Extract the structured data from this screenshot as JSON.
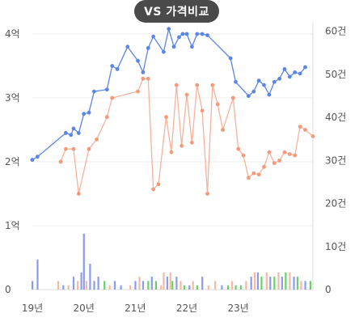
{
  "header": {
    "toggle_label": "VS 가격비교"
  },
  "chart_data": {
    "type": "line",
    "x_ticks": [
      "19년",
      "20년",
      "21년",
      "22년",
      "23년"
    ],
    "y_left": {
      "ticks": [
        "0",
        "1억",
        "2억",
        "3억",
        "4억"
      ],
      "range": [
        0,
        4.3
      ]
    },
    "y_right": {
      "ticks": [
        "0",
        "10건",
        "20건",
        "30건",
        "40건",
        "50건",
        "60건"
      ],
      "range": [
        0,
        62
      ]
    },
    "colors": {
      "blue": "#5b86e5",
      "orange": "#f39a7b",
      "bar_blue": "#8c9bf0",
      "bar_orange": "#f8b9a4",
      "bar_green": "#6bd06b"
    },
    "series": [
      {
        "color_key": "blue",
        "values": [
          [
            2019.0,
            2.03
          ],
          [
            2019.1,
            2.08
          ],
          [
            2019.65,
            2.45
          ],
          [
            2019.75,
            2.42
          ],
          [
            2019.8,
            2.52
          ],
          [
            2019.9,
            2.45
          ],
          [
            2020.0,
            2.75
          ],
          [
            2020.1,
            2.77
          ],
          [
            2020.2,
            3.1
          ],
          [
            2020.45,
            3.13
          ],
          [
            2020.55,
            3.5
          ],
          [
            2020.65,
            3.45
          ],
          [
            2020.85,
            3.8
          ],
          [
            2021.05,
            3.58
          ],
          [
            2021.15,
            3.4
          ],
          [
            2021.25,
            3.78
          ],
          [
            2021.35,
            3.96
          ],
          [
            2021.55,
            3.72
          ],
          [
            2021.65,
            4.08
          ],
          [
            2021.75,
            3.8
          ],
          [
            2021.85,
            3.95
          ],
          [
            2021.92,
            4.0
          ],
          [
            2022.0,
            4.0
          ],
          [
            2022.1,
            3.8
          ],
          [
            2022.2,
            4.0
          ],
          [
            2022.3,
            4.0
          ],
          [
            2022.4,
            3.98
          ],
          [
            2022.85,
            3.62
          ],
          [
            2022.95,
            3.25
          ],
          [
            2023.2,
            3.03
          ],
          [
            2023.3,
            3.1
          ],
          [
            2023.4,
            3.27
          ],
          [
            2023.5,
            3.2
          ],
          [
            2023.6,
            3.05
          ],
          [
            2023.7,
            3.25
          ],
          [
            2023.8,
            3.3
          ],
          [
            2023.9,
            3.45
          ],
          [
            2024.0,
            3.33
          ],
          [
            2024.1,
            3.4
          ],
          [
            2024.2,
            3.38
          ],
          [
            2024.3,
            3.48
          ]
        ]
      },
      {
        "color_key": "orange",
        "values": [
          [
            2019.55,
            2.0
          ],
          [
            2019.65,
            2.2
          ],
          [
            2019.8,
            2.2
          ],
          [
            2019.9,
            1.5
          ],
          [
            2020.1,
            2.2
          ],
          [
            2020.25,
            2.35
          ],
          [
            2020.45,
            2.7
          ],
          [
            2020.55,
            3.0
          ],
          [
            2021.05,
            3.1
          ],
          [
            2021.15,
            3.3
          ],
          [
            2021.25,
            3.3
          ],
          [
            2021.35,
            1.57
          ],
          [
            2021.45,
            1.65
          ],
          [
            2021.6,
            2.7
          ],
          [
            2021.7,
            2.15
          ],
          [
            2021.8,
            3.2
          ],
          [
            2021.9,
            2.25
          ],
          [
            2022.0,
            3.05
          ],
          [
            2022.1,
            2.3
          ],
          [
            2022.2,
            3.2
          ],
          [
            2022.3,
            2.8
          ],
          [
            2022.4,
            1.5
          ],
          [
            2022.5,
            3.2
          ],
          [
            2022.6,
            2.9
          ],
          [
            2022.7,
            2.5
          ],
          [
            2022.9,
            3.0
          ],
          [
            2023.0,
            2.2
          ],
          [
            2023.1,
            2.1
          ],
          [
            2023.2,
            1.75
          ],
          [
            2023.3,
            1.82
          ],
          [
            2023.4,
            1.8
          ],
          [
            2023.5,
            1.92
          ],
          [
            2023.6,
            2.15
          ],
          [
            2023.7,
            1.98
          ],
          [
            2023.8,
            2.02
          ],
          [
            2023.9,
            2.15
          ],
          [
            2024.0,
            2.12
          ],
          [
            2024.1,
            2.1
          ],
          [
            2024.2,
            2.55
          ],
          [
            2024.3,
            2.5
          ],
          [
            2024.45,
            2.4
          ]
        ]
      }
    ],
    "volume_bars": [
      [
        2019.0,
        2,
        "blue"
      ],
      [
        2019.1,
        7,
        "blue"
      ],
      [
        2019.5,
        2,
        "orange"
      ],
      [
        2019.6,
        1,
        "blue"
      ],
      [
        2019.7,
        1,
        "orange"
      ],
      [
        2019.8,
        3,
        "blue"
      ],
      [
        2019.88,
        2,
        "orange"
      ],
      [
        2019.95,
        4,
        "blue"
      ],
      [
        2020.0,
        13,
        "blue"
      ],
      [
        2020.05,
        2,
        "orange"
      ],
      [
        2020.12,
        6,
        "blue"
      ],
      [
        2020.2,
        2,
        "blue"
      ],
      [
        2020.28,
        3,
        "blue"
      ],
      [
        2020.4,
        2,
        "green"
      ],
      [
        2020.5,
        1,
        "orange"
      ],
      [
        2020.6,
        2,
        "blue"
      ],
      [
        2020.72,
        1,
        "blue"
      ],
      [
        2020.9,
        1,
        "orange"
      ],
      [
        2021.0,
        2,
        "blue"
      ],
      [
        2021.08,
        3,
        "orange"
      ],
      [
        2021.15,
        2,
        "blue"
      ],
      [
        2021.25,
        2,
        "green"
      ],
      [
        2021.32,
        3,
        "blue"
      ],
      [
        2021.4,
        2,
        "green"
      ],
      [
        2021.5,
        1,
        "orange"
      ],
      [
        2021.55,
        4,
        "orange"
      ],
      [
        2021.62,
        3,
        "blue"
      ],
      [
        2021.68,
        4,
        "orange"
      ],
      [
        2021.72,
        2,
        "green"
      ],
      [
        2021.8,
        3,
        "blue"
      ],
      [
        2021.88,
        2,
        "orange"
      ],
      [
        2021.95,
        1,
        "green"
      ],
      [
        2022.05,
        1,
        "blue"
      ],
      [
        2022.12,
        2,
        "orange"
      ],
      [
        2022.2,
        1,
        "green"
      ],
      [
        2022.3,
        3,
        "blue"
      ],
      [
        2022.42,
        1,
        "orange"
      ],
      [
        2022.55,
        2,
        "orange"
      ],
      [
        2022.68,
        1,
        "blue"
      ],
      [
        2022.8,
        1,
        "green"
      ],
      [
        2022.88,
        2,
        "orange"
      ],
      [
        2022.95,
        1,
        "green"
      ],
      [
        2023.05,
        1,
        "green"
      ],
      [
        2023.15,
        2,
        "orange"
      ],
      [
        2023.25,
        3,
        "blue"
      ],
      [
        2023.32,
        4,
        "orange"
      ],
      [
        2023.38,
        4,
        "blue"
      ],
      [
        2023.45,
        3,
        "green"
      ],
      [
        2023.55,
        4,
        "orange"
      ],
      [
        2023.62,
        3,
        "blue"
      ],
      [
        2023.7,
        3,
        "green"
      ],
      [
        2023.78,
        4,
        "orange"
      ],
      [
        2023.85,
        3,
        "blue"
      ],
      [
        2023.92,
        4,
        "green"
      ],
      [
        2024.0,
        4,
        "orange"
      ],
      [
        2024.08,
        3,
        "blue"
      ],
      [
        2024.15,
        3,
        "green"
      ],
      [
        2024.22,
        2,
        "orange"
      ],
      [
        2024.3,
        2,
        "blue"
      ],
      [
        2024.4,
        2,
        "green"
      ]
    ]
  }
}
